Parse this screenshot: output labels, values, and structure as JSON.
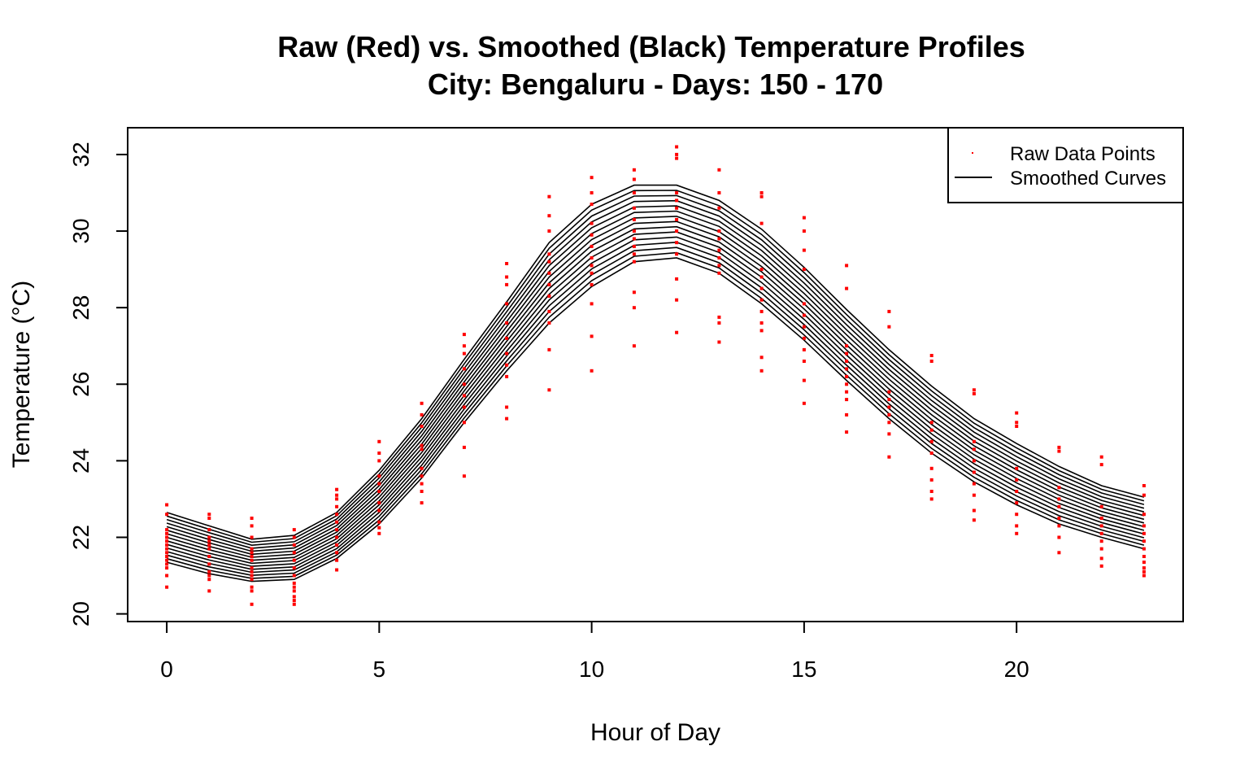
{
  "chart_data": {
    "type": "line",
    "title": "Raw (Red) vs. Smoothed (Black) Temperature Profiles",
    "subtitle": "City: Bengaluru - Days: 150 - 170",
    "xlabel": "Hour of Day",
    "ylabel": "Temperature (°C)",
    "xlim": [
      -0.92,
      23.92
    ],
    "ylim": [
      19.8,
      32.7
    ],
    "x_ticks": [
      0,
      5,
      10,
      15,
      20
    ],
    "y_ticks": [
      20,
      22,
      24,
      26,
      28,
      30,
      32
    ],
    "x_tick_labels": [
      "0",
      "5",
      "10",
      "15",
      "20"
    ],
    "y_tick_labels": [
      "20",
      "22",
      "24",
      "26",
      "28",
      "30",
      "32"
    ],
    "legend": {
      "position": "top-right",
      "entries": [
        {
          "label": "Raw Data Points",
          "type": "point",
          "color": "#ff0000"
        },
        {
          "label": "Smoothed Curves",
          "type": "line",
          "color": "#000000"
        }
      ]
    },
    "colors": {
      "raw": "#ff0000",
      "smoothed": "#000000"
    },
    "hours": [
      0,
      1,
      2,
      3,
      4,
      5,
      6,
      7,
      8,
      9,
      10,
      11,
      12,
      13,
      14,
      15,
      16,
      17,
      18,
      19,
      20,
      21,
      22,
      23
    ],
    "smoothed_lower": [
      21.35,
      21.05,
      20.85,
      20.9,
      21.45,
      22.35,
      23.55,
      25.0,
      26.35,
      27.6,
      28.55,
      29.2,
      29.3,
      28.9,
      28.1,
      27.15,
      26.1,
      25.1,
      24.2,
      23.45,
      22.85,
      22.35,
      22.0,
      21.7
    ],
    "smoothed_upper": [
      22.65,
      22.3,
      21.95,
      22.05,
      22.65,
      23.75,
      25.1,
      26.65,
      28.15,
      29.7,
      30.7,
      31.2,
      31.2,
      30.8,
      30.05,
      29.05,
      27.95,
      26.9,
      25.95,
      25.1,
      24.45,
      23.85,
      23.35,
      23.05
    ],
    "smoothed_curve_count": 15,
    "raw_points": [
      {
        "x": 0,
        "y": [
          20.7,
          21.0,
          21.2,
          21.3,
          21.4,
          21.5,
          21.6,
          21.7,
          21.8,
          21.9,
          22.0,
          22.1,
          22.2,
          22.6,
          22.85
        ]
      },
      {
        "x": 1,
        "y": [
          20.6,
          20.9,
          21.0,
          21.1,
          21.3,
          21.5,
          21.7,
          21.8,
          21.9,
          22.0,
          22.2,
          22.5,
          22.6
        ]
      },
      {
        "x": 2,
        "y": [
          20.25,
          20.6,
          20.7,
          20.9,
          21.0,
          21.1,
          21.2,
          21.4,
          21.5,
          21.6,
          21.7,
          22.0,
          22.3,
          22.5
        ]
      },
      {
        "x": 3,
        "y": [
          20.25,
          20.35,
          20.45,
          20.6,
          20.7,
          20.8,
          21.0,
          21.2,
          21.4,
          21.6,
          21.8,
          22.0,
          22.2
        ]
      },
      {
        "x": 4,
        "y": [
          21.15,
          21.4,
          21.6,
          21.8,
          22.0,
          22.2,
          22.4,
          22.6,
          22.8,
          23.0,
          23.1,
          23.25
        ]
      },
      {
        "x": 5,
        "y": [
          22.1,
          22.25,
          22.4,
          22.7,
          22.9,
          23.2,
          23.4,
          23.6,
          24.0,
          24.2,
          24.5
        ]
      },
      {
        "x": 6,
        "y": [
          22.9,
          23.2,
          23.4,
          23.6,
          23.8,
          24.3,
          24.4,
          24.9,
          25.2,
          25.5
        ]
      },
      {
        "x": 7,
        "y": [
          23.6,
          24.35,
          25.0,
          25.4,
          25.7,
          26.0,
          26.4,
          26.8,
          27.0,
          27.3
        ]
      },
      {
        "x": 8,
        "y": [
          25.1,
          25.4,
          26.2,
          26.5,
          26.8,
          27.2,
          27.6,
          28.1,
          28.6,
          28.8,
          29.15
        ]
      },
      {
        "x": 9,
        "y": [
          25.85,
          26.9,
          27.6,
          27.9,
          28.3,
          28.6,
          28.9,
          29.2,
          29.4,
          30.0,
          30.4,
          30.9
        ]
      },
      {
        "x": 10,
        "y": [
          26.35,
          27.25,
          28.1,
          28.6,
          28.9,
          29.1,
          29.3,
          29.6,
          29.9,
          30.2,
          30.7,
          31.0,
          31.4
        ]
      },
      {
        "x": 11,
        "y": [
          27.0,
          28.0,
          28.4,
          29.2,
          29.4,
          29.6,
          29.8,
          30.0,
          30.3,
          30.6,
          31.0,
          31.35,
          31.6
        ]
      },
      {
        "x": 12,
        "y": [
          27.35,
          28.2,
          28.75,
          29.4,
          29.7,
          30.0,
          30.3,
          30.6,
          30.8,
          31.0,
          31.9,
          32.0,
          32.2
        ]
      },
      {
        "x": 13,
        "y": [
          27.1,
          27.6,
          27.75,
          28.9,
          29.1,
          29.3,
          29.5,
          29.8,
          30.0,
          30.6,
          31.0,
          31.6
        ]
      },
      {
        "x": 14,
        "y": [
          26.35,
          26.7,
          27.4,
          27.6,
          27.9,
          28.2,
          28.5,
          28.8,
          29.0,
          30.2,
          30.9,
          31.0
        ]
      },
      {
        "x": 15,
        "y": [
          25.5,
          26.1,
          26.6,
          26.9,
          27.2,
          27.5,
          27.8,
          28.1,
          29.0,
          29.5,
          30.0,
          30.35
        ]
      },
      {
        "x": 16,
        "y": [
          24.75,
          25.2,
          25.6,
          25.8,
          26.0,
          26.2,
          26.4,
          26.6,
          26.8,
          27.0,
          28.5,
          29.1
        ]
      },
      {
        "x": 17,
        "y": [
          24.1,
          24.7,
          25.0,
          25.2,
          25.4,
          25.6,
          25.8,
          27.5,
          27.9
        ]
      },
      {
        "x": 18,
        "y": [
          23.0,
          23.2,
          23.5,
          23.8,
          24.2,
          24.5,
          24.8,
          25.0,
          26.6,
          26.75
        ]
      },
      {
        "x": 19,
        "y": [
          22.45,
          22.7,
          23.1,
          23.4,
          23.7,
          24.0,
          24.3,
          24.5,
          25.75,
          25.85
        ]
      },
      {
        "x": 20,
        "y": [
          22.1,
          22.3,
          22.6,
          22.9,
          23.2,
          23.5,
          23.8,
          24.9,
          25.0,
          25.25
        ]
      },
      {
        "x": 21,
        "y": [
          21.6,
          22.0,
          22.3,
          22.5,
          22.8,
          23.0,
          23.3,
          24.25,
          24.35
        ]
      },
      {
        "x": 22,
        "y": [
          21.25,
          21.45,
          21.7,
          21.9,
          22.1,
          22.3,
          22.5,
          22.8,
          23.9,
          24.1
        ]
      },
      {
        "x": 23,
        "y": [
          21.0,
          21.1,
          21.2,
          21.35,
          21.5,
          21.7,
          21.9,
          22.1,
          22.3,
          22.6,
          23.1,
          23.35
        ]
      }
    ]
  }
}
